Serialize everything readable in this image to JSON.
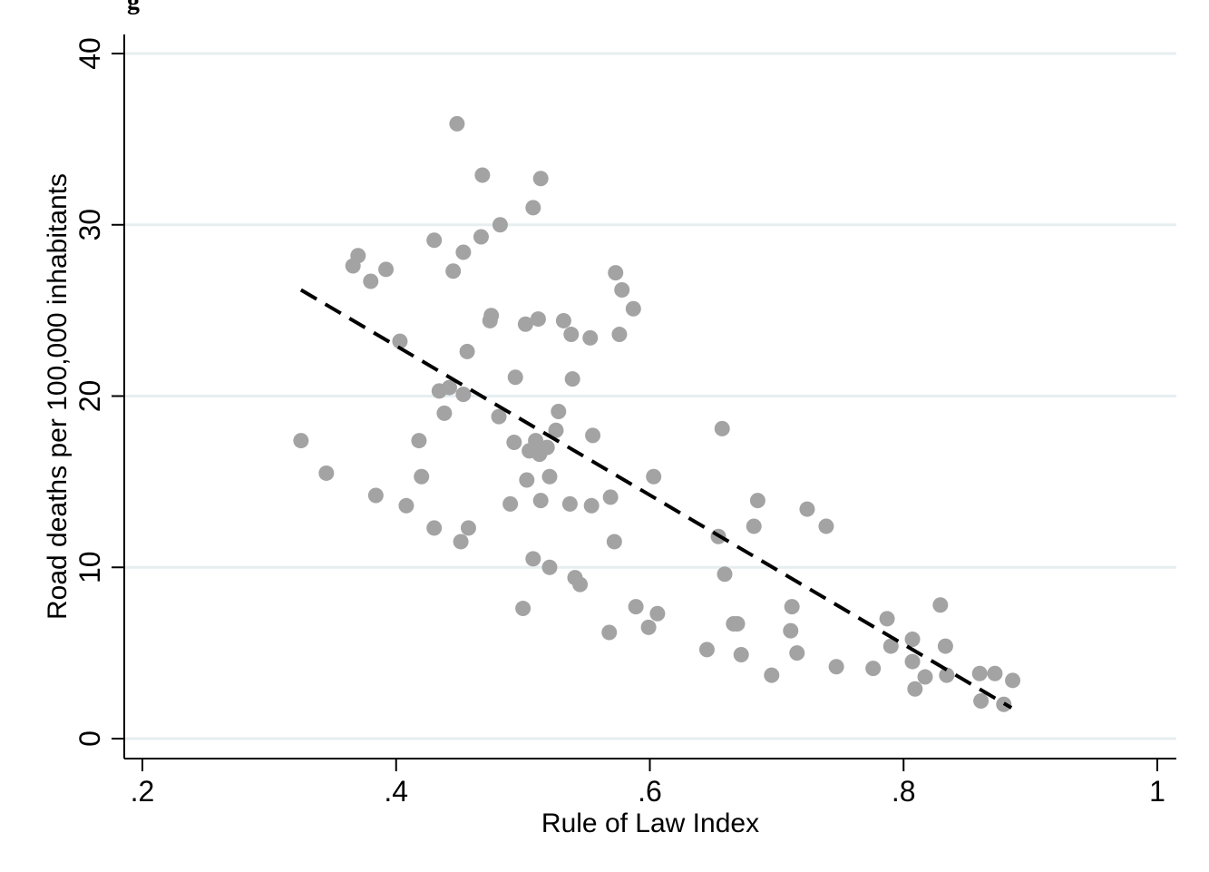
{
  "header_fragment": "g",
  "chart_data": {
    "type": "scatter",
    "xlabel": "Rule of Law Index",
    "ylabel": "Road deaths per 100,000 inhabitants",
    "xlim": [
      0.2,
      1.0
    ],
    "ylim": [
      0,
      40
    ],
    "x_ticks": [
      0.2,
      0.4,
      0.6,
      0.8,
      1.0
    ],
    "x_tick_labels": [
      ".2",
      ".4",
      ".6",
      ".8",
      "1"
    ],
    "y_ticks": [
      0,
      10,
      20,
      30,
      40
    ],
    "y_tick_labels": [
      "0",
      "10",
      "20",
      "30",
      "40"
    ],
    "grid": "horizontal",
    "marker_color": "#a3a3a3",
    "fit_line_color": "#000000",
    "fit_line": {
      "x": [
        0.325,
        0.885
      ],
      "y": [
        26.2,
        1.8
      ],
      "style": "dashed"
    },
    "points": [
      [
        0.325,
        17.4
      ],
      [
        0.345,
        15.5
      ],
      [
        0.366,
        27.6
      ],
      [
        0.37,
        28.2
      ],
      [
        0.38,
        26.7
      ],
      [
        0.384,
        14.2
      ],
      [
        0.392,
        27.4
      ],
      [
        0.403,
        23.2
      ],
      [
        0.408,
        13.6
      ],
      [
        0.418,
        17.4
      ],
      [
        0.42,
        15.3
      ],
      [
        0.43,
        29.1
      ],
      [
        0.43,
        12.3
      ],
      [
        0.434,
        20.3
      ],
      [
        0.438,
        19.0
      ],
      [
        0.442,
        20.5
      ],
      [
        0.445,
        27.3
      ],
      [
        0.448,
        35.9
      ],
      [
        0.451,
        11.5
      ],
      [
        0.453,
        28.4
      ],
      [
        0.453,
        20.1
      ],
      [
        0.456,
        22.6
      ],
      [
        0.457,
        12.3
      ],
      [
        0.468,
        32.9
      ],
      [
        0.467,
        29.3
      ],
      [
        0.474,
        24.4
      ],
      [
        0.475,
        24.7
      ],
      [
        0.482,
        30.0
      ],
      [
        0.481,
        18.8
      ],
      [
        0.49,
        13.7
      ],
      [
        0.493,
        17.3
      ],
      [
        0.494,
        21.1
      ],
      [
        0.5,
        7.6
      ],
      [
        0.502,
        24.2
      ],
      [
        0.503,
        15.1
      ],
      [
        0.505,
        16.8
      ],
      [
        0.508,
        31.0
      ],
      [
        0.508,
        10.5
      ],
      [
        0.51,
        17.4
      ],
      [
        0.512,
        24.5
      ],
      [
        0.513,
        16.6
      ],
      [
        0.514,
        32.7
      ],
      [
        0.514,
        13.9
      ],
      [
        0.519,
        17.0
      ],
      [
        0.521,
        15.3
      ],
      [
        0.521,
        10.0
      ],
      [
        0.526,
        18.0
      ],
      [
        0.528,
        19.1
      ],
      [
        0.532,
        24.4
      ],
      [
        0.537,
        13.7
      ],
      [
        0.538,
        23.6
      ],
      [
        0.539,
        21.0
      ],
      [
        0.541,
        9.4
      ],
      [
        0.545,
        9.0
      ],
      [
        0.553,
        23.4
      ],
      [
        0.554,
        13.6
      ],
      [
        0.555,
        17.7
      ],
      [
        0.568,
        6.2
      ],
      [
        0.569,
        14.1
      ],
      [
        0.572,
        11.5
      ],
      [
        0.573,
        27.2
      ],
      [
        0.576,
        23.6
      ],
      [
        0.578,
        26.2
      ],
      [
        0.587,
        25.1
      ],
      [
        0.589,
        7.7
      ],
      [
        0.599,
        6.5
      ],
      [
        0.603,
        15.3
      ],
      [
        0.606,
        7.3
      ],
      [
        0.645,
        5.2
      ],
      [
        0.654,
        11.8
      ],
      [
        0.657,
        18.1
      ],
      [
        0.659,
        9.6
      ],
      [
        0.666,
        6.7
      ],
      [
        0.669,
        6.7
      ],
      [
        0.672,
        4.9
      ],
      [
        0.682,
        12.4
      ],
      [
        0.685,
        13.9
      ],
      [
        0.696,
        3.7
      ],
      [
        0.711,
        6.3
      ],
      [
        0.712,
        7.7
      ],
      [
        0.716,
        5.0
      ],
      [
        0.724,
        13.4
      ],
      [
        0.739,
        12.4
      ],
      [
        0.747,
        4.2
      ],
      [
        0.776,
        4.1
      ],
      [
        0.787,
        7.0
      ],
      [
        0.79,
        5.4
      ],
      [
        0.807,
        5.8
      ],
      [
        0.807,
        4.5
      ],
      [
        0.809,
        2.9
      ],
      [
        0.817,
        3.6
      ],
      [
        0.829,
        7.8
      ],
      [
        0.833,
        5.4
      ],
      [
        0.834,
        3.7
      ],
      [
        0.86,
        3.8
      ],
      [
        0.861,
        2.2
      ],
      [
        0.872,
        3.8
      ],
      [
        0.879,
        2.0
      ],
      [
        0.886,
        3.4
      ]
    ]
  }
}
